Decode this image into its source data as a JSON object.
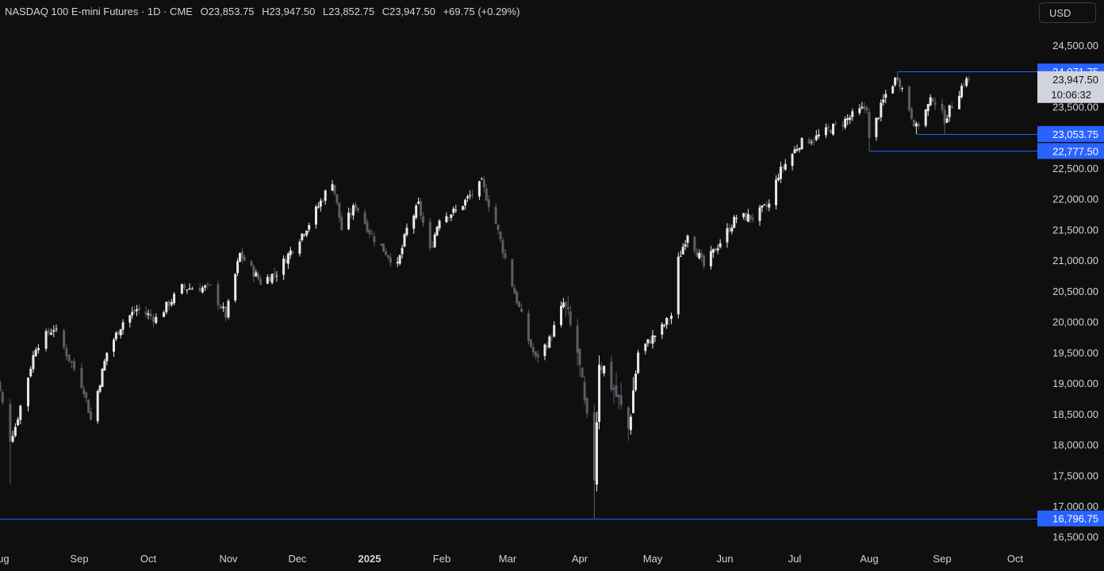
{
  "header": {
    "title": "NASDAQ 100 E-mini Futures · 1D · CME",
    "open": "O23,853.75",
    "high": "H23,947.50",
    "low": "L23,852.75",
    "close": "C23,947.50",
    "change": "+69.75 (+0.29%)"
  },
  "toolbar": {
    "currency": "USD"
  },
  "colors": {
    "background": "#0f0f0f",
    "candle_up": "#e8e8e8",
    "candle_down": "#5d5d66",
    "level_line": "#2962ff",
    "level_label_bg": "#2962ff",
    "price_label_bg": "#d1d4dc"
  },
  "chart_data": {
    "type": "candlestick",
    "y_axis_ticks": [
      "24,500.00",
      "23,500.00",
      "22,500.00",
      "22,000.00",
      "21,500.00",
      "21,000.00",
      "20,500.00",
      "20,000.00",
      "19,500.00",
      "19,000.00",
      "18,500.00",
      "18,000.00",
      "17,500.00",
      "17,000.00",
      "16,500.00"
    ],
    "x_axis_ticks": [
      "Aug",
      "Sep",
      "Oct",
      "Nov",
      "Dec",
      "2025",
      "Feb",
      "Mar",
      "Apr",
      "May",
      "Jun",
      "Jul",
      "Aug",
      "Sep",
      "Oct"
    ],
    "current_price": {
      "value": "23,947.50",
      "countdown": "10:06:32"
    },
    "levels": [
      {
        "label": "24,071.75",
        "value": 24071.75,
        "start": "2025-08-13"
      },
      {
        "label": "23,053.75",
        "value": 23053.75,
        "start": "2025-08-21"
      },
      {
        "label": "22,777.50",
        "value": 22777.5,
        "start": "2025-08-01"
      },
      {
        "label": "16,796.75",
        "value": 16796.75,
        "start": "2024-07-29"
      }
    ],
    "close_path": [
      [
        "2024-07-29",
        19400
      ],
      [
        "2024-08-05",
        18100
      ],
      [
        "2024-08-07",
        18300
      ],
      [
        "2024-08-15",
        19600
      ],
      [
        "2024-08-22",
        19900
      ],
      [
        "2024-09-03",
        18900
      ],
      [
        "2024-09-06",
        18400
      ],
      [
        "2024-09-13",
        19500
      ],
      [
        "2024-09-20",
        20000
      ],
      [
        "2024-09-26",
        20200
      ],
      [
        "2024-10-04",
        20050
      ],
      [
        "2024-10-14",
        20550
      ],
      [
        "2024-10-25",
        20550
      ],
      [
        "2024-10-31",
        20100
      ],
      [
        "2024-11-06",
        21100
      ],
      [
        "2024-11-15",
        20650
      ],
      [
        "2024-11-22",
        20800
      ],
      [
        "2024-12-06",
        21600
      ],
      [
        "2024-12-16",
        22300
      ],
      [
        "2024-12-20",
        21500
      ],
      [
        "2024-12-26",
        21900
      ],
      [
        "2025-01-02",
        21400
      ],
      [
        "2025-01-13",
        20900
      ],
      [
        "2025-01-17",
        21500
      ],
      [
        "2025-01-22",
        21900
      ],
      [
        "2025-01-27",
        21150
      ],
      [
        "2025-01-31",
        21700
      ],
      [
        "2025-02-07",
        21800
      ],
      [
        "2025-02-18",
        22250
      ],
      [
        "2025-02-24",
        21600
      ],
      [
        "2025-03-03",
        20600
      ],
      [
        "2025-03-10",
        19700
      ],
      [
        "2025-03-13",
        19400
      ],
      [
        "2025-03-19",
        19700
      ],
      [
        "2025-03-25",
        20300
      ],
      [
        "2025-03-31",
        19500
      ],
      [
        "2025-04-03",
        18600
      ],
      [
        "2025-04-07",
        17500
      ],
      [
        "2025-04-09",
        19400
      ],
      [
        "2025-04-15",
        18900
      ],
      [
        "2025-04-21",
        18250
      ],
      [
        "2025-04-25",
        19500
      ],
      [
        "2025-05-05",
        19900
      ],
      [
        "2025-05-09",
        20100
      ],
      [
        "2025-05-12",
        21000
      ],
      [
        "2025-05-16",
        21450
      ],
      [
        "2025-05-23",
        20900
      ],
      [
        "2025-05-30",
        21300
      ],
      [
        "2025-06-06",
        21700
      ],
      [
        "2025-06-13",
        21700
      ],
      [
        "2025-06-20",
        21900
      ],
      [
        "2025-06-24",
        22400
      ],
      [
        "2025-07-03",
        22900
      ],
      [
        "2025-07-10",
        23000
      ],
      [
        "2025-07-21",
        23250
      ],
      [
        "2025-07-31",
        23500
      ],
      [
        "2025-08-01",
        22950
      ],
      [
        "2025-08-08",
        23700
      ],
      [
        "2025-08-13",
        24000
      ],
      [
        "2025-08-21",
        23150
      ],
      [
        "2025-08-28",
        23650
      ],
      [
        "2025-09-02",
        23300
      ],
      [
        "2025-09-10",
        23900
      ],
      [
        "2025-09-12",
        23947.5
      ]
    ]
  }
}
